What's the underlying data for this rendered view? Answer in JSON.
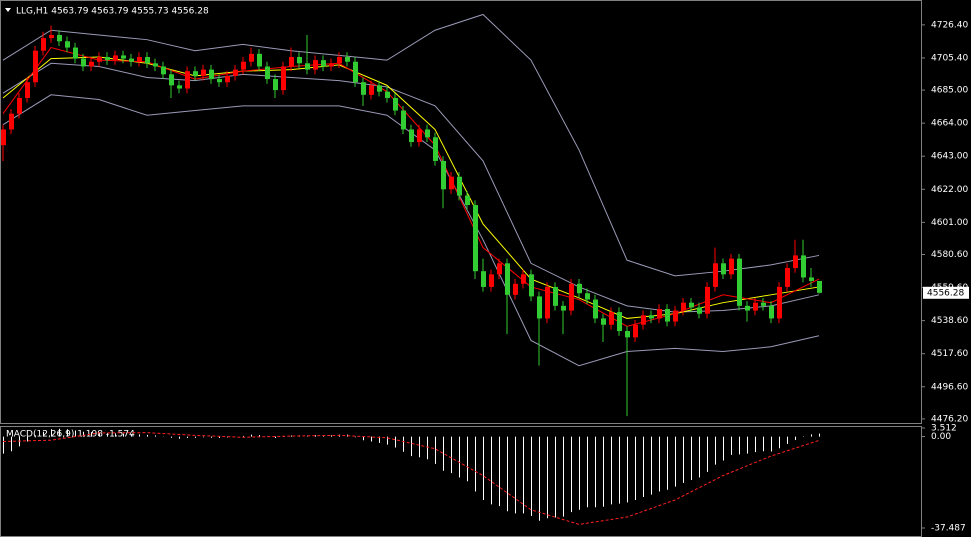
{
  "chart_data": [
    {
      "type": "candlestick",
      "title": "LLG,H1  4563.79 4563.79 4555.73 4556.28",
      "bull_color": "#ff0000",
      "bear_color": "#32cd32",
      "ylim": [
        4473.6,
        4742.2
      ],
      "yticks": [
        {
          "value": 4726.4,
          "label": "4726.40"
        },
        {
          "value": 4705.4,
          "label": "4705.40"
        },
        {
          "value": 4685,
          "label": "4685.00"
        },
        {
          "value": 4664,
          "label": "4664.00"
        },
        {
          "value": 4643,
          "label": "4643.00"
        },
        {
          "value": 4622,
          "label": "4622.00"
        },
        {
          "value": 4601,
          "label": "4601.00"
        },
        {
          "value": 4580.6,
          "label": "4580.60"
        },
        {
          "value": 4559.6,
          "label": "4559.60"
        },
        {
          "value": 4538.6,
          "label": "4538.60"
        },
        {
          "value": 4517.6,
          "label": "4517.60"
        },
        {
          "value": 4496.6,
          "label": "4496.60"
        },
        {
          "value": 4476.2,
          "label": "4476.20"
        }
      ],
      "last_price": {
        "value": 4556.28,
        "label": "4556.28"
      },
      "ohlc": [
        [
          4650,
          4663,
          4640,
          4660
        ],
        [
          4660,
          4673,
          4657,
          4670
        ],
        [
          4670,
          4683,
          4667,
          4680
        ],
        [
          4680,
          4693,
          4677,
          4690
        ],
        [
          4690,
          4713,
          4687,
          4710
        ],
        [
          4710,
          4722,
          4707,
          4718
        ],
        [
          4718,
          4726,
          4715,
          4720
        ],
        [
          4720,
          4723,
          4713,
          4716
        ],
        [
          4716,
          4719,
          4709,
          4712
        ],
        [
          4712,
          4715,
          4702,
          4705
        ],
        [
          4705,
          4708,
          4697,
          4700
        ],
        [
          4700,
          4706,
          4697,
          4703
        ],
        [
          4703,
          4709,
          4700,
          4706
        ],
        [
          4706,
          4709,
          4701,
          4704
        ],
        [
          4704,
          4710,
          4701,
          4707
        ],
        [
          4707,
          4710,
          4702,
          4705
        ],
        [
          4705,
          4708,
          4700,
          4703
        ],
        [
          4703,
          4709,
          4700,
          4706
        ],
        [
          4706,
          4709,
          4699,
          4702
        ],
        [
          4702,
          4705,
          4697,
          4700
        ],
        [
          4700,
          4703,
          4692,
          4695
        ],
        [
          4695,
          4698,
          4680,
          4688
        ],
        [
          4688,
          4691,
          4683,
          4686
        ],
        [
          4686,
          4700,
          4683,
          4697
        ],
        [
          4697,
          4700,
          4691,
          4694
        ],
        [
          4694,
          4701,
          4691,
          4698
        ],
        [
          4698,
          4701,
          4689,
          4692
        ],
        [
          4692,
          4695,
          4687,
          4690
        ],
        [
          4690,
          4697,
          4687,
          4694
        ],
        [
          4694,
          4701,
          4691,
          4698
        ],
        [
          4698,
          4706,
          4695,
          4703
        ],
        [
          4703,
          4712,
          4700,
          4708
        ],
        [
          4708,
          4711,
          4697,
          4700
        ],
        [
          4700,
          4703,
          4689,
          4692
        ],
        [
          4692,
          4695,
          4680,
          4685
        ],
        [
          4685,
          4703,
          4682,
          4700
        ],
        [
          4700,
          4712,
          4697,
          4706
        ],
        [
          4706,
          4709,
          4699,
          4702
        ],
        [
          4702,
          4720,
          4695,
          4698
        ],
        [
          4698,
          4707,
          4695,
          4704
        ],
        [
          4704,
          4707,
          4697,
          4700
        ],
        [
          4700,
          4705,
          4697,
          4702
        ],
        [
          4702,
          4709,
          4699,
          4706
        ],
        [
          4706,
          4709,
          4700,
          4703
        ],
        [
          4703,
          4706,
          4687,
          4690
        ],
        [
          4690,
          4693,
          4675,
          4682
        ],
        [
          4682,
          4691,
          4679,
          4688
        ],
        [
          4688,
          4691,
          4681,
          4684
        ],
        [
          4684,
          4687,
          4677,
          4680
        ],
        [
          4680,
          4683,
          4669,
          4672
        ],
        [
          4672,
          4675,
          4657,
          4660
        ],
        [
          4660,
          4663,
          4649,
          4652
        ],
        [
          4652,
          4663,
          4649,
          4660
        ],
        [
          4660,
          4663,
          4652,
          4655
        ],
        [
          4655,
          4658,
          4637,
          4640
        ],
        [
          4640,
          4643,
          4610,
          4622
        ],
        [
          4622,
          4633,
          4619,
          4630
        ],
        [
          4630,
          4633,
          4615,
          4618
        ],
        [
          4618,
          4621,
          4609,
          4612
        ],
        [
          4612,
          4615,
          4565,
          4570
        ],
        [
          4570,
          4578,
          4557,
          4560
        ],
        [
          4560,
          4571,
          4557,
          4568
        ],
        [
          4568,
          4578,
          4565,
          4575
        ],
        [
          4575,
          4578,
          4530,
          4555
        ],
        [
          4555,
          4565,
          4552,
          4562
        ],
        [
          4562,
          4571,
          4559,
          4568
        ],
        [
          4568,
          4571,
          4551,
          4554
        ],
        [
          4554,
          4557,
          4510,
          4540
        ],
        [
          4540,
          4563,
          4537,
          4560
        ],
        [
          4560,
          4563,
          4545,
          4548
        ],
        [
          4548,
          4551,
          4530,
          4545
        ],
        [
          4545,
          4565,
          4542,
          4562
        ],
        [
          4562,
          4565,
          4553,
          4556
        ],
        [
          4556,
          4559,
          4549,
          4552
        ],
        [
          4552,
          4555,
          4537,
          4540
        ],
        [
          4540,
          4543,
          4525,
          4536
        ],
        [
          4536,
          4547,
          4533,
          4544
        ],
        [
          4544,
          4547,
          4529,
          4532
        ],
        [
          4532,
          4535,
          4478,
          4528
        ],
        [
          4528,
          4539,
          4525,
          4536
        ],
        [
          4536,
          4545,
          4533,
          4542
        ],
        [
          4542,
          4545,
          4537,
          4540
        ],
        [
          4540,
          4549,
          4537,
          4546
        ],
        [
          4546,
          4549,
          4535,
          4538
        ],
        [
          4538,
          4548,
          4535,
          4545
        ],
        [
          4545,
          4553,
          4542,
          4550
        ],
        [
          4550,
          4553,
          4544,
          4547
        ],
        [
          4547,
          4550,
          4540,
          4543
        ],
        [
          4543,
          4563,
          4540,
          4560
        ],
        [
          4560,
          4585,
          4557,
          4575
        ],
        [
          4575,
          4578,
          4565,
          4568
        ],
        [
          4568,
          4581,
          4565,
          4578
        ],
        [
          4578,
          4581,
          4545,
          4548
        ],
        [
          4548,
          4551,
          4538,
          4545
        ],
        [
          4545,
          4553,
          4542,
          4550
        ],
        [
          4550,
          4553,
          4545,
          4548
        ],
        [
          4548,
          4551,
          4537,
          4540
        ],
        [
          4540,
          4563,
          4537,
          4560
        ],
        [
          4560,
          4575,
          4557,
          4572
        ],
        [
          4572,
          4590,
          4569,
          4580
        ],
        [
          4580,
          4590,
          4563,
          4566
        ],
        [
          4566,
          4572,
          4560,
          4563.79
        ],
        [
          4563.79,
          4563.79,
          4555.73,
          4556.28
        ]
      ],
      "line_x": [
        0,
        6,
        12,
        18,
        24,
        30,
        36,
        42,
        48,
        54,
        60,
        66,
        72,
        78,
        84,
        90,
        96,
        102
      ],
      "lines": [
        {
          "color": "#9a9ab8",
          "values": [
            4704,
            4723,
            4720,
            4717,
            4710,
            4714,
            4710,
            4707,
            4704,
            4723,
            4733,
            4704,
            4647,
            4577,
            4567,
            4570,
            4574,
            4580
          ]
        },
        {
          "color": "#9a9ab8",
          "values": [
            4683,
            4702,
            4700,
            4693,
            4691,
            4695,
            4693,
            4691,
            4687,
            4675,
            4640,
            4575,
            4560,
            4548,
            4544,
            4545,
            4548,
            4555
          ]
        },
        {
          "color": "#9a9ab8",
          "values": [
            4663,
            4682,
            4679,
            4669,
            4672,
            4675,
            4675,
            4675,
            4669,
            4647,
            4590,
            4526,
            4510,
            4519,
            4521,
            4519,
            4522,
            4529
          ]
        },
        {
          "color": "#ffff00",
          "values": [
            4680,
            4705,
            4706,
            4702,
            4694,
            4697,
            4698,
            4701,
            4688,
            4660,
            4600,
            4565,
            4553,
            4540,
            4543,
            4550,
            4555,
            4560
          ]
        },
        {
          "color": "#ff0000",
          "values": [
            4670,
            4712,
            4704,
            4703,
            4692,
            4697,
            4700,
            4702,
            4684,
            4650,
            4585,
            4560,
            4552,
            4535,
            4543,
            4555,
            4550,
            4565
          ]
        }
      ]
    },
    {
      "type": "macd",
      "title": "MACD(12,26,9) 1.198 -1.574",
      "color": "#ffffff",
      "signal_color": "#ff2020",
      "ylim": [
        -37.487,
        3.512
      ],
      "yticks": [
        {
          "value": 3.512,
          "label": "3.512"
        },
        {
          "value": 0,
          "label": "0.00"
        },
        {
          "value": -37.487,
          "label": "-37.487"
        }
      ],
      "values": [
        -7,
        -6,
        -4,
        -2,
        0.5,
        2,
        3,
        3.2,
        3,
        2.5,
        2,
        1.8,
        1.6,
        1.4,
        1.3,
        1.2,
        1,
        0.9,
        0.7,
        0.5,
        0.1,
        -0.5,
        -0.9,
        -0.6,
        -0.5,
        -0.3,
        -0.5,
        -0.6,
        -0.4,
        -0.1,
        0.3,
        0.8,
        0.6,
        0.1,
        -0.6,
        -0.2,
        0.4,
        0.5,
        0.4,
        0.6,
        0.5,
        0.5,
        0.8,
        0.8,
        -0.3,
        -1.5,
        -2,
        -2.6,
        -3.3,
        -4.5,
        -6.2,
        -8,
        -8.5,
        -9.3,
        -11.2,
        -14,
        -15,
        -16.8,
        -18.3,
        -22.5,
        -26,
        -27.8,
        -28.5,
        -30.6,
        -31.5,
        -31.5,
        -32.5,
        -34.5,
        -33.5,
        -33.2,
        -32.8,
        -31,
        -30,
        -29,
        -29,
        -28.8,
        -27.8,
        -27.5,
        -27,
        -26,
        -24.8,
        -23.8,
        -22.5,
        -21.8,
        -20.5,
        -19,
        -17.8,
        -16.8,
        -14.5,
        -11.5,
        -9.8,
        -7.5,
        -7.3,
        -7,
        -6.4,
        -6,
        -6.1,
        -4.8,
        -3,
        -1.4,
        -0.2,
        0.9,
        1.198
      ],
      "signal_x": [
        0,
        6,
        12,
        18,
        24,
        30,
        36,
        42,
        48,
        54,
        60,
        66,
        72,
        78,
        84,
        90,
        96,
        102
      ],
      "signal": [
        -2,
        -1.5,
        1.5,
        1.6,
        0.5,
        -0.3,
        0.2,
        0.5,
        -0.5,
        -5,
        -16,
        -30,
        -36,
        -33,
        -26,
        -16,
        -8,
        -1.574
      ]
    }
  ]
}
